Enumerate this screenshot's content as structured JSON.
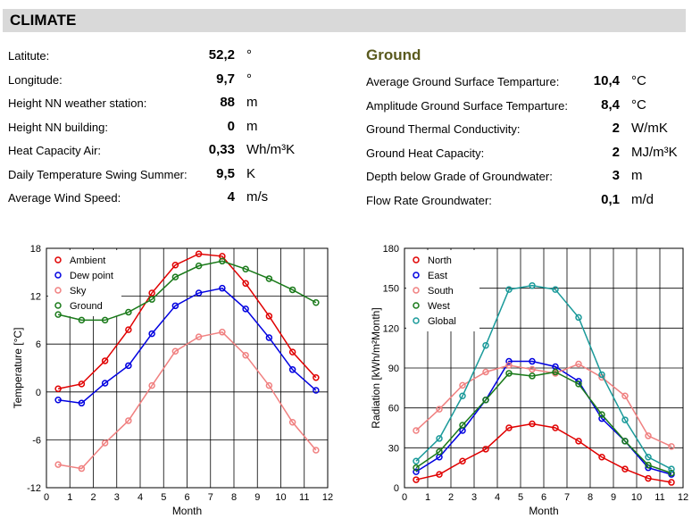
{
  "header": {
    "title": "CLIMATE"
  },
  "climate": [
    {
      "label": "Latitute:",
      "value": "52,2",
      "unit": "°"
    },
    {
      "label": "Longitude:",
      "value": "9,7",
      "unit": "°"
    },
    {
      "label": "Height NN weather station:",
      "value": "88",
      "unit": "m"
    },
    {
      "label": "Height NN building:",
      "value": "0",
      "unit": "m"
    },
    {
      "label": "Heat Capacity Air:",
      "value": "0,33",
      "unit": "Wh/m³K"
    },
    {
      "label": "Daily Temperature Swing Summer:",
      "value": "9,5",
      "unit": "K"
    },
    {
      "label": "Average Wind Speed:",
      "value": "4",
      "unit": "m/s"
    }
  ],
  "ground": {
    "title": "Ground",
    "rows": [
      {
        "label": "Average Ground Surface Temparture:",
        "value": "10,4",
        "unit": "°C"
      },
      {
        "label": "Amplitude Ground Surface Temparture:",
        "value": "8,4",
        "unit": "°C"
      },
      {
        "label": "Ground Thermal Conductivity:",
        "value": "2",
        "unit": "W/mK"
      },
      {
        "label": "Ground Heat Capacity:",
        "value": "2",
        "unit": "MJ/m³K"
      },
      {
        "label": "Depth below Grade of Groundwater:",
        "value": "3",
        "unit": "m"
      },
      {
        "label": "Flow Rate Groundwater:",
        "value": "0,1",
        "unit": "m/d"
      }
    ]
  },
  "chart_data": [
    {
      "type": "line",
      "xlabel": "Month",
      "ylabel": "Temperature [°C]",
      "xlim": [
        0,
        12
      ],
      "ylim": [
        -12,
        18
      ],
      "xticks": [
        0,
        1,
        2,
        3,
        4,
        5,
        6,
        7,
        8,
        9,
        10,
        11,
        12
      ],
      "yticks": [
        -12,
        -6,
        0,
        6,
        12,
        18
      ],
      "grid": true,
      "legend_position": "top-left",
      "x": [
        0.5,
        1.5,
        2.5,
        3.5,
        4.5,
        5.5,
        6.5,
        7.5,
        8.5,
        9.5,
        10.5,
        11.5
      ],
      "series": [
        {
          "name": "Ambient",
          "color": "#e00000",
          "values": [
            0.4,
            1.0,
            3.9,
            7.8,
            12.4,
            15.9,
            17.3,
            17.0,
            13.6,
            9.5,
            5.0,
            1.8
          ]
        },
        {
          "name": "Dew point",
          "color": "#0000e0",
          "values": [
            -1.0,
            -1.4,
            1.1,
            3.3,
            7.3,
            10.8,
            12.4,
            13.0,
            10.4,
            6.8,
            2.8,
            0.2
          ]
        },
        {
          "name": "Sky",
          "color": "#f08080",
          "values": [
            -9.1,
            -9.6,
            -6.4,
            -3.6,
            0.8,
            5.1,
            6.9,
            7.5,
            4.6,
            0.8,
            -3.8,
            -7.3
          ]
        },
        {
          "name": "Ground",
          "color": "#1a7a1a",
          "values": [
            9.7,
            9.0,
            9.0,
            10.0,
            11.6,
            14.4,
            15.8,
            16.4,
            15.4,
            14.2,
            12.8,
            11.2
          ]
        }
      ]
    },
    {
      "type": "line",
      "xlabel": "Month",
      "ylabel": "Radiation [kWh/m²Month]",
      "xlim": [
        0,
        12
      ],
      "ylim": [
        0,
        180
      ],
      "xticks": [
        0,
        1,
        2,
        3,
        4,
        5,
        6,
        7,
        8,
        9,
        10,
        11,
        12
      ],
      "yticks": [
        0,
        30,
        60,
        90,
        120,
        150,
        180
      ],
      "grid": true,
      "legend_position": "top-left",
      "x": [
        0.5,
        1.5,
        2.5,
        3.5,
        4.5,
        5.5,
        6.5,
        7.5,
        8.5,
        9.5,
        10.5,
        11.5
      ],
      "series": [
        {
          "name": "North",
          "color": "#e00000",
          "values": [
            6,
            10,
            20,
            29,
            45,
            48,
            45,
            35,
            23,
            14,
            7,
            4
          ]
        },
        {
          "name": "East",
          "color": "#0000e0",
          "values": [
            12,
            23,
            43,
            66,
            95,
            95,
            91,
            80,
            52,
            35,
            15,
            10
          ]
        },
        {
          "name": "South",
          "color": "#f08080",
          "values": [
            43,
            59,
            77,
            87,
            92,
            89,
            86,
            93,
            83,
            69,
            39,
            31
          ]
        },
        {
          "name": "West",
          "color": "#1a7a1a",
          "values": [
            15,
            27,
            47,
            66,
            86,
            84,
            87,
            78,
            55,
            35,
            17,
            11
          ]
        },
        {
          "name": "Global",
          "color": "#1a9a9a",
          "values": [
            20,
            37,
            69,
            107,
            149,
            152,
            149,
            128,
            85,
            51,
            23,
            14
          ]
        }
      ]
    }
  ]
}
